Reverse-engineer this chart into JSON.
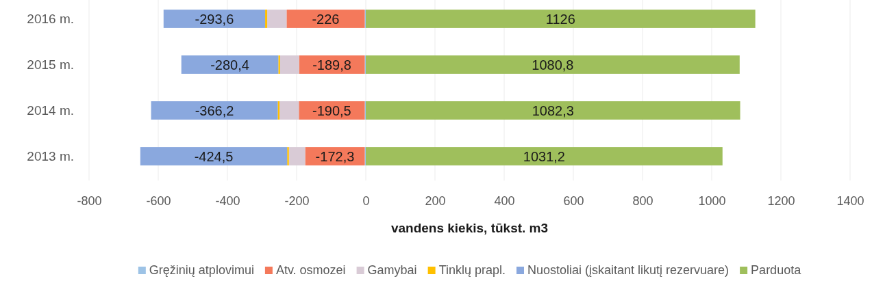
{
  "chart_data": {
    "type": "bar",
    "orientation": "horizontal",
    "stacked": true,
    "categories": [
      "2016 m.",
      "2015 m.",
      "2014 m.",
      "2013 m."
    ],
    "xlabel": "vandens kiekis, tūkst. m3",
    "xlim": [
      -800,
      1400
    ],
    "xticks": [
      -800,
      -600,
      -400,
      -200,
      0,
      200,
      400,
      600,
      800,
      1000,
      1200,
      1400
    ],
    "grid": "x",
    "legend": "bottom",
    "series": [
      {
        "name": "Gręžinių atplovimui",
        "color": "#9dc3e6",
        "values": [
          -3,
          -3,
          -3,
          -3
        ]
      },
      {
        "name": "Atv. osmozei",
        "color": "#f4795b",
        "values": [
          -226,
          -189.8,
          -190.5,
          -172.3
        ],
        "value_labels": [
          "-226",
          "-189,8",
          "-190,5",
          "-172,3"
        ]
      },
      {
        "name": "Gamybai",
        "color": "#d9cbd6",
        "values": [
          -56,
          -55,
          -56,
          -47
        ]
      },
      {
        "name": "Tinklų prapl.",
        "color": "#ffc000",
        "values": [
          -6,
          -5,
          -5,
          -5
        ]
      },
      {
        "name": "Nuostoliai (įskaitant likutį rezervuare)",
        "color": "#8aa8de",
        "values": [
          -293.6,
          -280.4,
          -366.2,
          -424.5
        ],
        "value_labels": [
          "-293,6",
          "-280,4",
          "-366,2",
          "-424,5"
        ]
      },
      {
        "name": "Parduota",
        "color": "#9fbf5c",
        "values": [
          1126,
          1080.8,
          1082.3,
          1031.2
        ],
        "value_labels": [
          "1126",
          "1080,8",
          "1082,3",
          "1031,2"
        ]
      }
    ]
  }
}
